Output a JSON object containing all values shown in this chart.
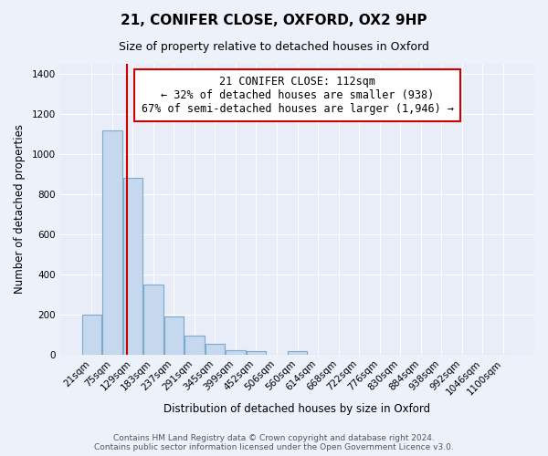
{
  "title": "21, CONIFER CLOSE, OXFORD, OX2 9HP",
  "subtitle": "Size of property relative to detached houses in Oxford",
  "xlabel": "Distribution of detached houses by size in Oxford",
  "ylabel": "Number of detached properties",
  "bar_labels": [
    "21sqm",
    "75sqm",
    "129sqm",
    "183sqm",
    "237sqm",
    "291sqm",
    "345sqm",
    "399sqm",
    "452sqm",
    "506sqm",
    "560sqm",
    "614sqm",
    "668sqm",
    "722sqm",
    "776sqm",
    "830sqm",
    "884sqm",
    "938sqm",
    "992sqm",
    "1046sqm",
    "1100sqm"
  ],
  "bar_values": [
    200,
    1120,
    880,
    350,
    190,
    95,
    55,
    20,
    15,
    0,
    15,
    0,
    0,
    0,
    0,
    0,
    0,
    0,
    0,
    0,
    0
  ],
  "bar_color": "#c5d8ee",
  "bar_edge_color": "#7aabce",
  "vline_x_index": 1.72,
  "vline_color": "#cc0000",
  "annotation_text": "21 CONIFER CLOSE: 112sqm\n← 32% of detached houses are smaller (938)\n67% of semi-detached houses are larger (1,946) →",
  "annotation_box_color": "#ffffff",
  "annotation_box_edgecolor": "#cc0000",
  "ylim": [
    0,
    1450
  ],
  "yticks": [
    0,
    200,
    400,
    600,
    800,
    1000,
    1200,
    1400
  ],
  "footer_line1": "Contains HM Land Registry data © Crown copyright and database right 2024.",
  "footer_line2": "Contains public sector information licensed under the Open Government Licence v3.0.",
  "background_color": "#edf1f9",
  "plot_bg_color": "#e8edf7",
  "grid_color": "#ffffff",
  "title_fontsize": 11,
  "subtitle_fontsize": 9,
  "axis_label_fontsize": 8.5,
  "tick_fontsize": 7.5,
  "annotation_fontsize": 8.5,
  "footer_fontsize": 6.5
}
